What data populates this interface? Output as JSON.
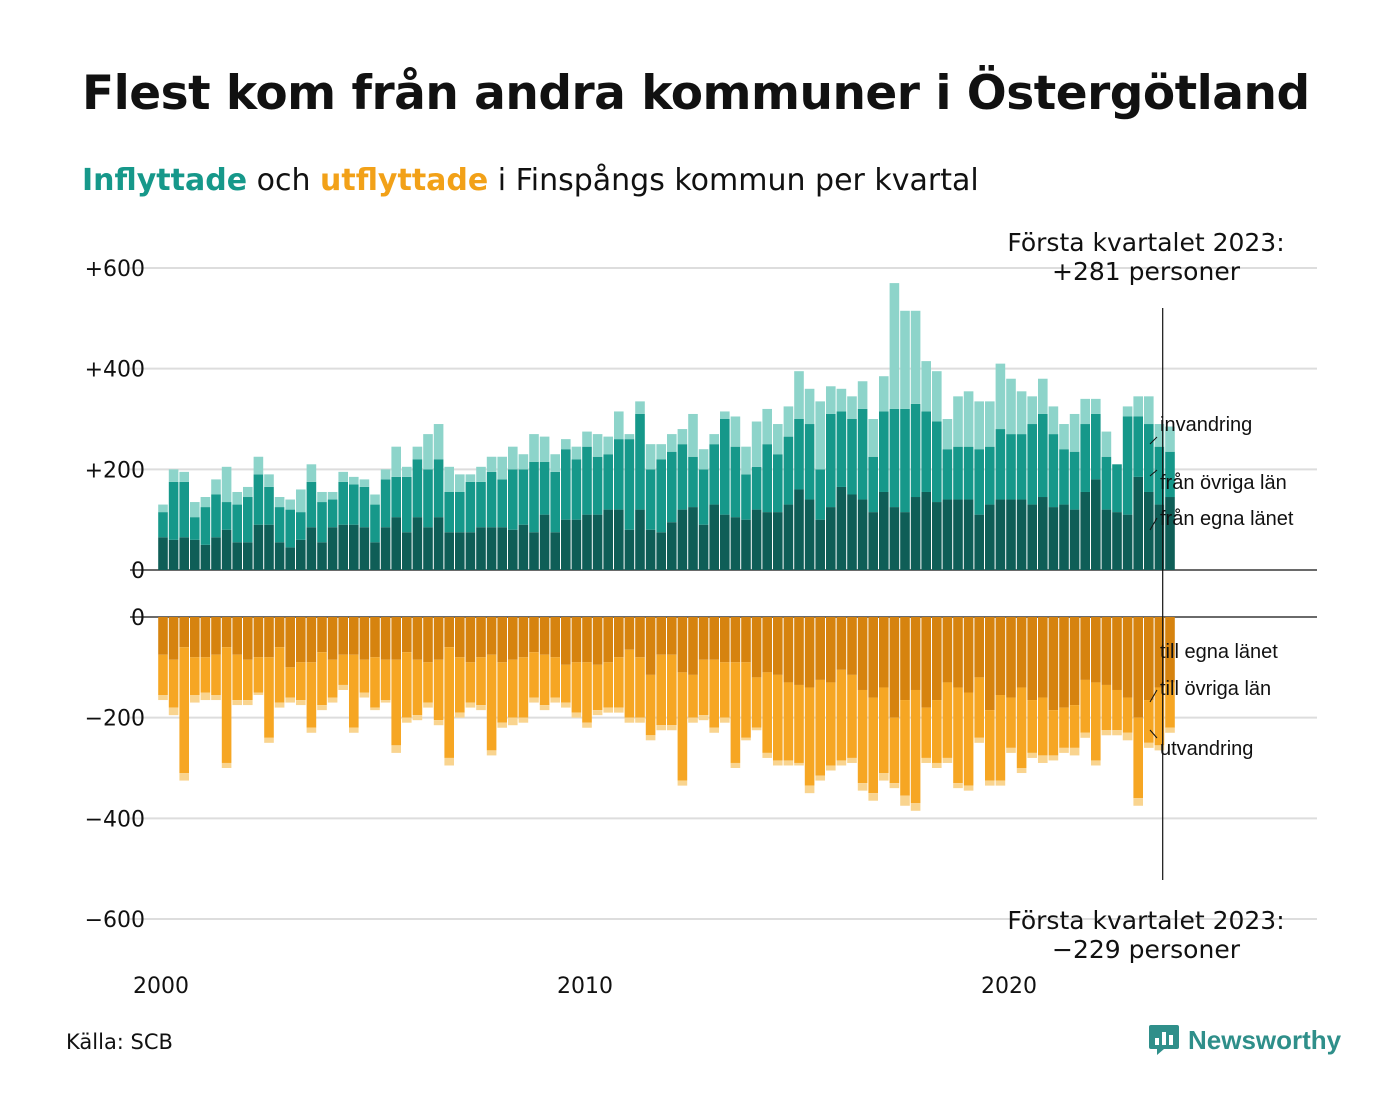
{
  "title": "Flest kom från andra kommuner i Östergötland",
  "subtitle": {
    "in_word": "Inflyttade",
    "and_word": " och ",
    "out_word": "utflyttade",
    "rest": " i Finspångs kommun per kvartal"
  },
  "colors": {
    "in_own": "#0f5e57",
    "in_other": "#16988a",
    "in_immig": "#8dd4ca",
    "out_own": "#d6830f",
    "out_other": "#f6a623",
    "out_emig": "#f9d48f",
    "grid": "#dddddd",
    "text": "#111111",
    "brand": "#2f8f8a"
  },
  "source": "Källa: SCB",
  "brand": "Newsworthy",
  "chart_data": {
    "type": "bar",
    "stacked": true,
    "x_start_year": 2000,
    "quarters_per_year": 4,
    "x_ticks": [
      "2000",
      "2010",
      "2020"
    ],
    "y_ticks_top": [
      "+600",
      "+400",
      "+200",
      "0"
    ],
    "y_ticks_bottom": [
      "0",
      "−200",
      "−400",
      "−600"
    ],
    "ylim_top": [
      0,
      600
    ],
    "ylim_bottom": [
      -600,
      0
    ],
    "annotation_top": [
      "Första kvartalet 2023:",
      "+281 personer"
    ],
    "annotation_bottom": [
      "Första kvartalet 2023:",
      "−229 personer"
    ],
    "labels_in": [
      "invandring",
      "från övriga län",
      "från egna länet"
    ],
    "labels_out": [
      "till egna länet",
      "till övriga län",
      "utvandring"
    ],
    "series_in": [
      {
        "name": "från egna länet",
        "values": [
          65,
          60,
          65,
          60,
          50,
          65,
          80,
          55,
          55,
          90,
          90,
          55,
          45,
          60,
          85,
          55,
          85,
          90,
          90,
          85,
          55,
          85,
          105,
          75,
          105,
          85,
          105,
          75,
          75,
          75,
          85,
          85,
          85,
          80,
          90,
          75,
          110,
          75,
          100,
          100,
          110,
          110,
          120,
          120,
          80,
          120,
          80,
          75,
          95,
          120,
          125,
          90,
          130,
          110,
          105,
          100,
          120,
          115,
          115,
          130,
          160,
          140,
          100,
          125,
          165,
          150,
          140,
          115,
          155,
          125,
          115,
          145,
          155,
          135,
          140,
          140,
          140,
          110,
          130,
          140,
          140,
          140,
          130,
          145,
          125,
          130,
          120,
          155,
          180,
          120,
          115,
          110,
          185,
          155,
          130,
          145
        ]
      },
      {
        "name": "från övriga län",
        "values": [
          50,
          115,
          110,
          45,
          75,
          85,
          55,
          75,
          90,
          100,
          75,
          70,
          75,
          55,
          90,
          80,
          55,
          85,
          80,
          80,
          75,
          95,
          80,
          110,
          115,
          115,
          115,
          80,
          80,
          100,
          90,
          110,
          95,
          120,
          110,
          140,
          105,
          120,
          140,
          120,
          135,
          115,
          110,
          140,
          180,
          190,
          120,
          145,
          140,
          130,
          100,
          110,
          120,
          190,
          140,
          90,
          85,
          135,
          115,
          135,
          140,
          150,
          100,
          185,
          150,
          150,
          180,
          110,
          160,
          195,
          205,
          185,
          160,
          160,
          100,
          105,
          105,
          130,
          115,
          140,
          130,
          130,
          160,
          165,
          145,
          110,
          115,
          135,
          130,
          105,
          95,
          195,
          120,
          135,
          115,
          90
        ]
      },
      {
        "name": "invandring",
        "values": [
          15,
          25,
          20,
          30,
          20,
          30,
          70,
          25,
          20,
          35,
          25,
          20,
          20,
          45,
          35,
          20,
          15,
          20,
          15,
          15,
          20,
          20,
          60,
          20,
          25,
          70,
          70,
          50,
          35,
          15,
          30,
          30,
          45,
          45,
          30,
          55,
          50,
          35,
          20,
          25,
          30,
          45,
          35,
          55,
          10,
          25,
          50,
          30,
          35,
          30,
          85,
          40,
          20,
          15,
          60,
          55,
          90,
          70,
          60,
          60,
          95,
          70,
          135,
          55,
          45,
          45,
          55,
          75,
          70,
          250,
          195,
          185,
          100,
          100,
          60,
          100,
          110,
          95,
          90,
          130,
          110,
          85,
          55,
          70,
          55,
          50,
          75,
          50,
          30,
          50,
          0,
          20,
          40,
          55,
          45,
          50
        ]
      }
    ],
    "series_out": [
      {
        "name": "till egna länet",
        "values": [
          75,
          85,
          60,
          80,
          80,
          75,
          60,
          75,
          85,
          80,
          80,
          60,
          100,
          90,
          90,
          70,
          85,
          75,
          75,
          85,
          80,
          85,
          85,
          70,
          85,
          90,
          85,
          60,
          80,
          90,
          80,
          75,
          90,
          85,
          80,
          70,
          75,
          80,
          95,
          90,
          90,
          95,
          90,
          80,
          65,
          80,
          115,
          75,
          75,
          110,
          115,
          85,
          85,
          90,
          90,
          90,
          120,
          110,
          115,
          130,
          135,
          140,
          125,
          130,
          105,
          115,
          145,
          160,
          140,
          200,
          165,
          145,
          180,
          165,
          130,
          140,
          150,
          120,
          185,
          155,
          160,
          140,
          165,
          160,
          185,
          180,
          175,
          125,
          130,
          135,
          145,
          160,
          200,
          165,
          140,
          130
        ]
      },
      {
        "name": "till övriga län",
        "values": [
          80,
          95,
          250,
          75,
          70,
          80,
          230,
          90,
          80,
          70,
          160,
          110,
          60,
          75,
          130,
          105,
          75,
          60,
          145,
          65,
          100,
          80,
          170,
          130,
          110,
          80,
          120,
          220,
          110,
          80,
          95,
          190,
          120,
          115,
          120,
          90,
          100,
          80,
          75,
          100,
          120,
          90,
          90,
          100,
          135,
          120,
          120,
          140,
          140,
          215,
          85,
          110,
          135,
          110,
          200,
          150,
          100,
          160,
          170,
          155,
          155,
          195,
          190,
          165,
          180,
          165,
          185,
          190,
          170,
          130,
          190,
          225,
          100,
          125,
          150,
          190,
          185,
          120,
          140,
          170,
          100,
          160,
          105,
          115,
          90,
          80,
          85,
          105,
          155,
          90,
          80,
          70,
          160,
          85,
          115,
          90
        ]
      },
      {
        "name": "utvandring",
        "values": [
          10,
          15,
          15,
          15,
          15,
          10,
          10,
          10,
          10,
          5,
          10,
          10,
          10,
          10,
          10,
          10,
          10,
          10,
          10,
          10,
          5,
          5,
          15,
          10,
          10,
          10,
          10,
          15,
          10,
          10,
          10,
          10,
          10,
          15,
          10,
          10,
          10,
          10,
          10,
          10,
          10,
          10,
          10,
          10,
          10,
          10,
          10,
          10,
          10,
          10,
          10,
          10,
          10,
          10,
          10,
          5,
          5,
          10,
          10,
          10,
          5,
          15,
          10,
          10,
          10,
          10,
          15,
          15,
          15,
          10,
          20,
          15,
          10,
          10,
          10,
          10,
          10,
          10,
          10,
          10,
          10,
          10,
          10,
          15,
          10,
          10,
          15,
          10,
          10,
          10,
          10,
          15,
          15,
          10,
          10,
          10
        ]
      }
    ]
  }
}
